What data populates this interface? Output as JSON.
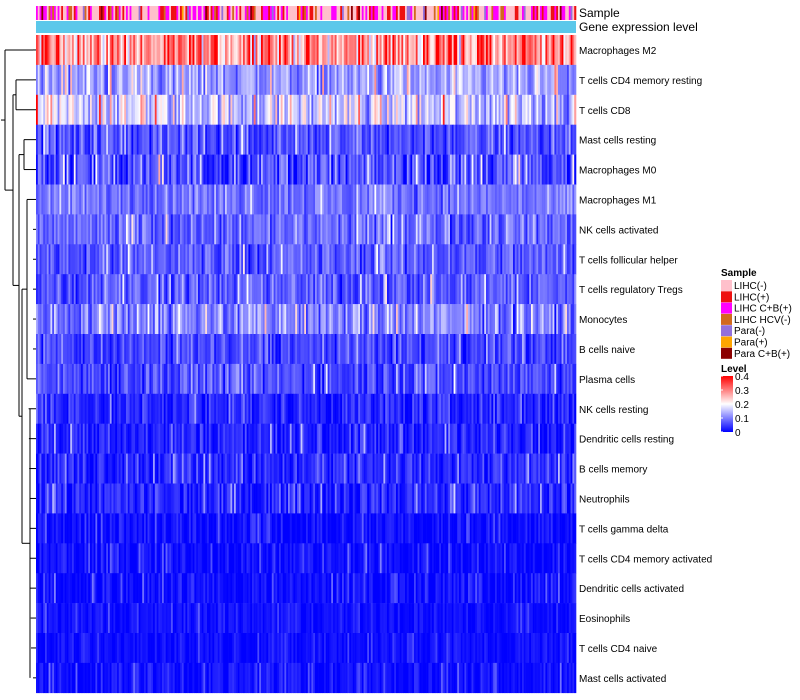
{
  "chart_data": {
    "type": "heatmap",
    "title": "",
    "xlabel": "",
    "ylabel": "",
    "annotations": {
      "sample_label": "Sample",
      "gene_expression_label": "Gene expression level",
      "gene_expression_color": "#5bc8ea"
    },
    "rows": [
      {
        "name": "Macrophages M2",
        "mean": 0.28,
        "spread": 0.1
      },
      {
        "name": "T cells CD4 memory resting",
        "mean": 0.12,
        "spread": 0.06
      },
      {
        "name": "T cells CD8",
        "mean": 0.16,
        "spread": 0.08
      },
      {
        "name": "Mast cells resting",
        "mean": 0.06,
        "spread": 0.05
      },
      {
        "name": "Macrophages M0",
        "mean": 0.06,
        "spread": 0.07
      },
      {
        "name": "Macrophages M1",
        "mean": 0.09,
        "spread": 0.04
      },
      {
        "name": "NK cells activated",
        "mean": 0.08,
        "spread": 0.05
      },
      {
        "name": "T cells follicular helper",
        "mean": 0.07,
        "spread": 0.05
      },
      {
        "name": "T cells regulatory  Tregs",
        "mean": 0.07,
        "spread": 0.05
      },
      {
        "name": "Monocytes",
        "mean": 0.1,
        "spread": 0.06
      },
      {
        "name": "B cells naive",
        "mean": 0.05,
        "spread": 0.04
      },
      {
        "name": "Plasma cells",
        "mean": 0.06,
        "spread": 0.05
      },
      {
        "name": "NK cells resting",
        "mean": 0.03,
        "spread": 0.04
      },
      {
        "name": "Dendritic cells resting",
        "mean": 0.03,
        "spread": 0.04
      },
      {
        "name": "B cells memory",
        "mean": 0.03,
        "spread": 0.04
      },
      {
        "name": "Neutrophils",
        "mean": 0.03,
        "spread": 0.04
      },
      {
        "name": "T cells gamma delta",
        "mean": 0.01,
        "spread": 0.03
      },
      {
        "name": "T cells CD4 memory activated",
        "mean": 0.01,
        "spread": 0.03
      },
      {
        "name": "Dendritic cells activated",
        "mean": 0.01,
        "spread": 0.03
      },
      {
        "name": "Eosinophils",
        "mean": 0.01,
        "spread": 0.02
      },
      {
        "name": "T cells CD4 naive",
        "mean": 0.01,
        "spread": 0.02
      },
      {
        "name": "Mast cells activated",
        "mean": 0.01,
        "spread": 0.03
      }
    ],
    "column_count": 300,
    "legend_sample": {
      "title": "Sample",
      "entries": [
        {
          "label": "LIHC(-)",
          "color": "#ffc0cb"
        },
        {
          "label": "LIHC(+)",
          "color": "#ee1111"
        },
        {
          "label": "LIHC C+B(+)",
          "color": "#ff00ff"
        },
        {
          "label": "LIHC HCV(-)",
          "color": "#d2691e"
        },
        {
          "label": "Para(-)",
          "color": "#9370db"
        },
        {
          "label": "Para(+)",
          "color": "#ffa500"
        },
        {
          "label": "Para C+B(+)",
          "color": "#8b0000"
        }
      ],
      "sample_weights": [
        0.42,
        0.18,
        0.22,
        0.08,
        0.05,
        0.02,
        0.03
      ]
    },
    "legend_level": {
      "title": "Level",
      "ticks": [
        "0.4",
        "0.3",
        "0.2",
        "0.1",
        "0"
      ],
      "range": [
        0,
        0.4
      ],
      "colors": {
        "low": "#0000ff",
        "mid": "#ffffff",
        "high": "#ff0000"
      }
    }
  }
}
